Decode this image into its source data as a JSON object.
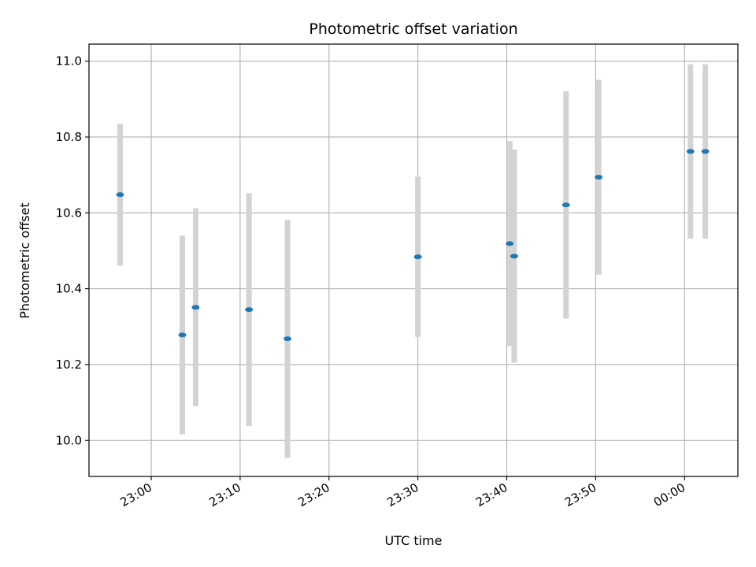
{
  "chart_data": {
    "type": "scatter",
    "title": "Photometric offset variation",
    "xlabel": "UTC time",
    "ylabel": "Photometric offset",
    "xlim": [
      "22:53:00",
      "00:06:00"
    ],
    "ylim": [
      9.905,
      11.045
    ],
    "x_ticks": [
      "23:00",
      "23:10",
      "23:20",
      "23:30",
      "23:40",
      "23:50",
      "00:00"
    ],
    "y_ticks": [
      "10.0",
      "10.2",
      "10.4",
      "10.6",
      "10.8",
      "11.0"
    ],
    "grid": true,
    "point_color": "#1f77b4",
    "errorbar_color": "#d3d3d3",
    "points": [
      {
        "x": "22:56:30",
        "y": 10.648,
        "yerr": 0.187
      },
      {
        "x": "23:03:30",
        "y": 10.278,
        "yerr": 0.262
      },
      {
        "x": "23:05:00",
        "y": 10.351,
        "yerr": 0.261
      },
      {
        "x": "23:11:00",
        "y": 10.345,
        "yerr": 0.307
      },
      {
        "x": "23:15:20",
        "y": 10.268,
        "yerr": 0.314
      },
      {
        "x": "23:30:00",
        "y": 10.484,
        "yerr": 0.211
      },
      {
        "x": "23:40:20",
        "y": 10.519,
        "yerr": 0.27
      },
      {
        "x": "23:40:50",
        "y": 10.486,
        "yerr": 0.281
      },
      {
        "x": "23:46:40",
        "y": 10.621,
        "yerr": 0.3
      },
      {
        "x": "23:50:20",
        "y": 10.694,
        "yerr": 0.257
      },
      {
        "x": "00:00:40",
        "y": 10.762,
        "yerr": 0.23
      },
      {
        "x": "00:02:20",
        "y": 10.762,
        "yerr": 0.23
      }
    ]
  }
}
